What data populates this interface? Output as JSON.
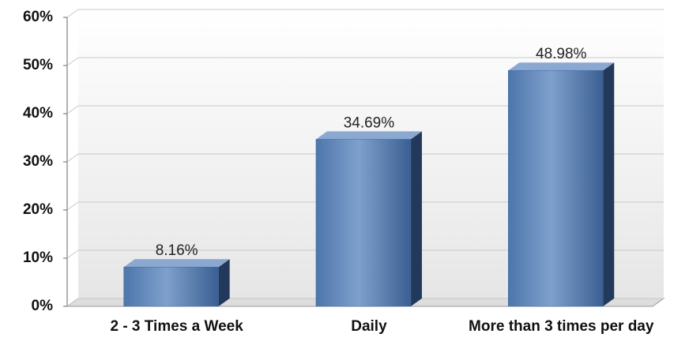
{
  "chart_data": {
    "type": "bar",
    "categories": [
      "2 - 3 Times a Week",
      "Daily",
      "More than 3 times per day"
    ],
    "values": [
      8.16,
      34.69,
      48.98
    ],
    "value_labels": [
      "8.16%",
      "34.69%",
      "48.98%"
    ],
    "color": "#3d6aa3",
    "ylim": [
      0,
      60
    ],
    "yticks": [
      {
        "value": 0,
        "label": "0%"
      },
      {
        "value": 10,
        "label": "10%"
      },
      {
        "value": 20,
        "label": "20%"
      },
      {
        "value": 30,
        "label": "30%"
      },
      {
        "value": 40,
        "label": "40%"
      },
      {
        "value": 50,
        "label": "50%"
      },
      {
        "value": 60,
        "label": "60%"
      }
    ],
    "grid": true
  }
}
